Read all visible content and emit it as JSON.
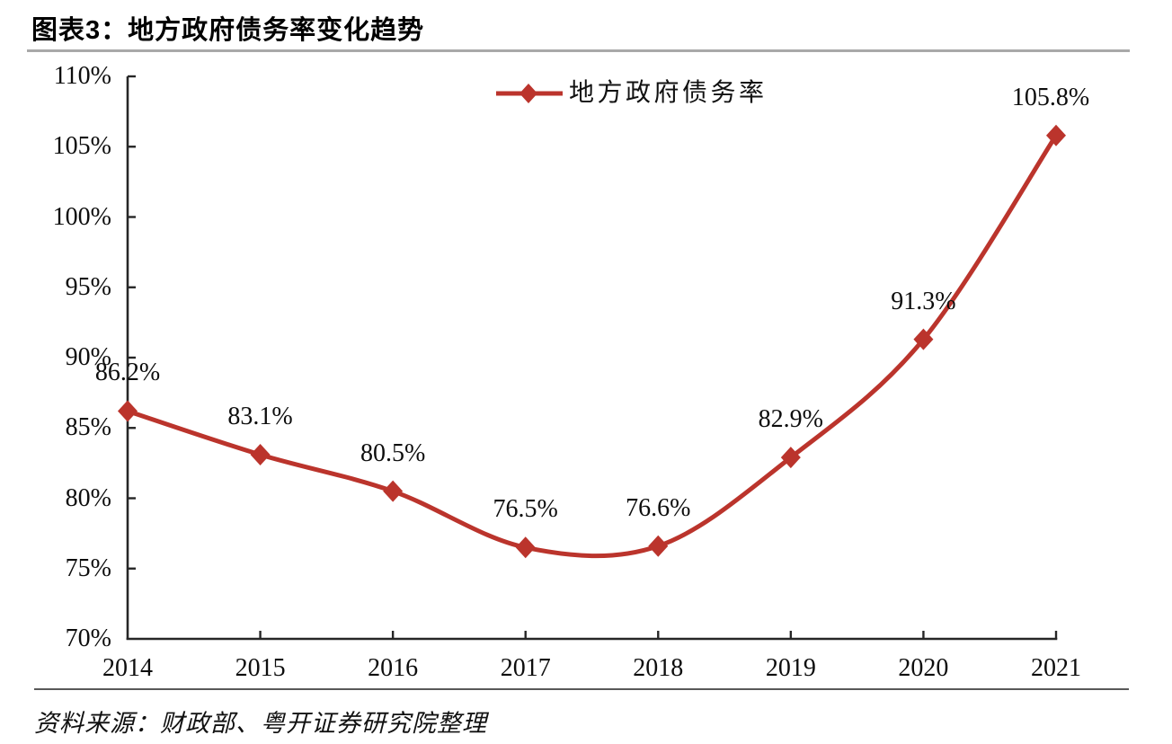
{
  "figure": {
    "caption": "图表3：地方政府债务率变化趋势",
    "source_note": "资料来源：财政部、粤开证券研究院整理"
  },
  "colors": {
    "series_red": "#bb342c",
    "axis": "#262626",
    "text": "#0d0d0d",
    "title_rule": "#a9a9a9",
    "footer_rule": "#595959"
  },
  "chart_data": {
    "type": "line",
    "title": "地方政府债务率变化趋势",
    "categories": [
      "2014",
      "2015",
      "2016",
      "2017",
      "2018",
      "2019",
      "2020",
      "2021"
    ],
    "series": [
      {
        "name": "地方政府债务率",
        "values": [
          86.2,
          83.1,
          80.5,
          76.5,
          76.6,
          82.9,
          91.3,
          105.8
        ],
        "color": "#bb342c",
        "marker": "diamond",
        "smooth": true
      }
    ],
    "data_labels": [
      "86.2%",
      "83.1%",
      "80.5%",
      "76.5%",
      "76.6%",
      "82.9%",
      "91.3%",
      "105.8%"
    ],
    "xlabel": "",
    "ylabel": "",
    "ylim": [
      70,
      110
    ],
    "y_ticks": [
      70,
      75,
      80,
      85,
      90,
      95,
      100,
      105,
      110
    ],
    "y_tick_labels": [
      "70%",
      "75%",
      "80%",
      "85%",
      "90%",
      "95%",
      "100%",
      "105%",
      "110%"
    ],
    "grid": false,
    "legend_position": "top-center",
    "tick_direction": "inside"
  }
}
